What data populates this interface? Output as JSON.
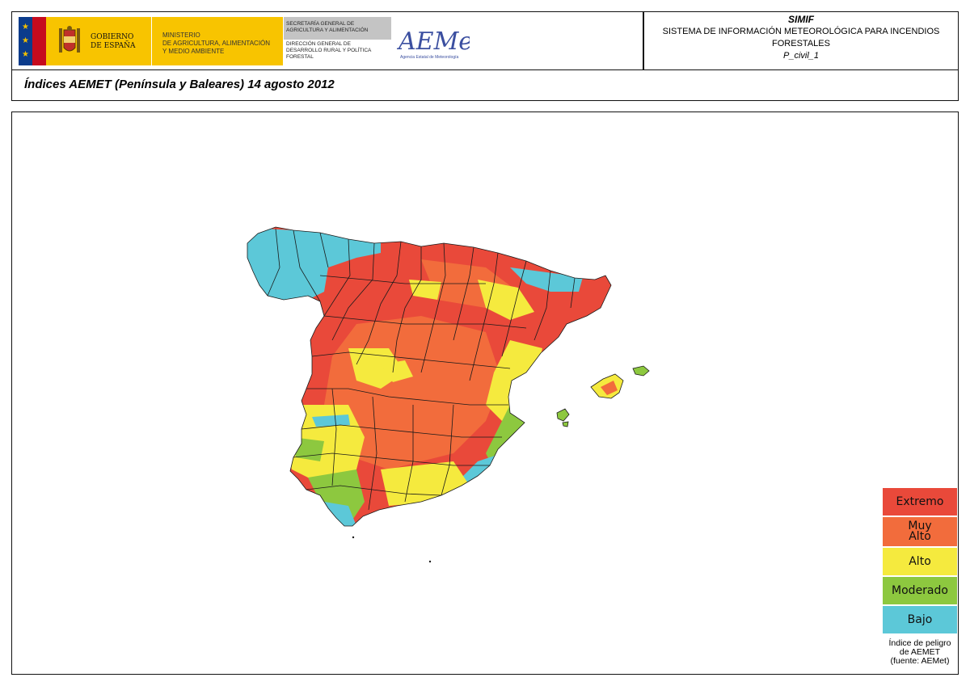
{
  "header": {
    "gov_lines": [
      "GOBIERNO",
      "DE ESPAÑA"
    ],
    "ministry_lines": [
      "MINISTERIO",
      "DE AGRICULTURA, ALIMENTACIÓN",
      "Y MEDIO AMBIENTE"
    ],
    "secretaria_lines": [
      "SECRETARÍA GENERAL DE",
      "AGRICULTURA Y ALIMENTACIÓN"
    ],
    "direccion_lines": [
      "DIRECCIÓN GENERAL DE",
      "DESARROLLO RURAL Y POLÍTICA",
      "FORESTAL"
    ],
    "aemet_logo": "AEMet",
    "aemet_subtitle": "Agencia Estatal de Meteorología",
    "system_short": "SIMIF",
    "system_name_line1": "SISTEMA DE INFORMACIÓN METEOROLÓGICA PARA INCENDIOS",
    "system_name_line2": "FORESTALES",
    "product_code": "P_civil_1"
  },
  "title": "Índices AEMET (Península y Baleares) 14 agosto 2012",
  "legend": {
    "items": [
      {
        "label": "Extremo",
        "color": "#e9493a"
      },
      {
        "label": "Muy Alto",
        "color": "#f26c3c"
      },
      {
        "label": "Alto",
        "color": "#f5ea3e"
      },
      {
        "label": "Moderado",
        "color": "#8dc83f"
      },
      {
        "label": "Bajo",
        "color": "#5cc8d8"
      }
    ],
    "caption_lines": [
      "Índice de peligro",
      "de AEMET",
      "(fuente: AEMet)"
    ]
  },
  "colors": {
    "extremo": "#e9493a",
    "muy_alto": "#f26c3c",
    "alto": "#f5ea3e",
    "moderado": "#8dc83f",
    "bajo": "#5cc8d8",
    "border": "#1a1a1a"
  }
}
